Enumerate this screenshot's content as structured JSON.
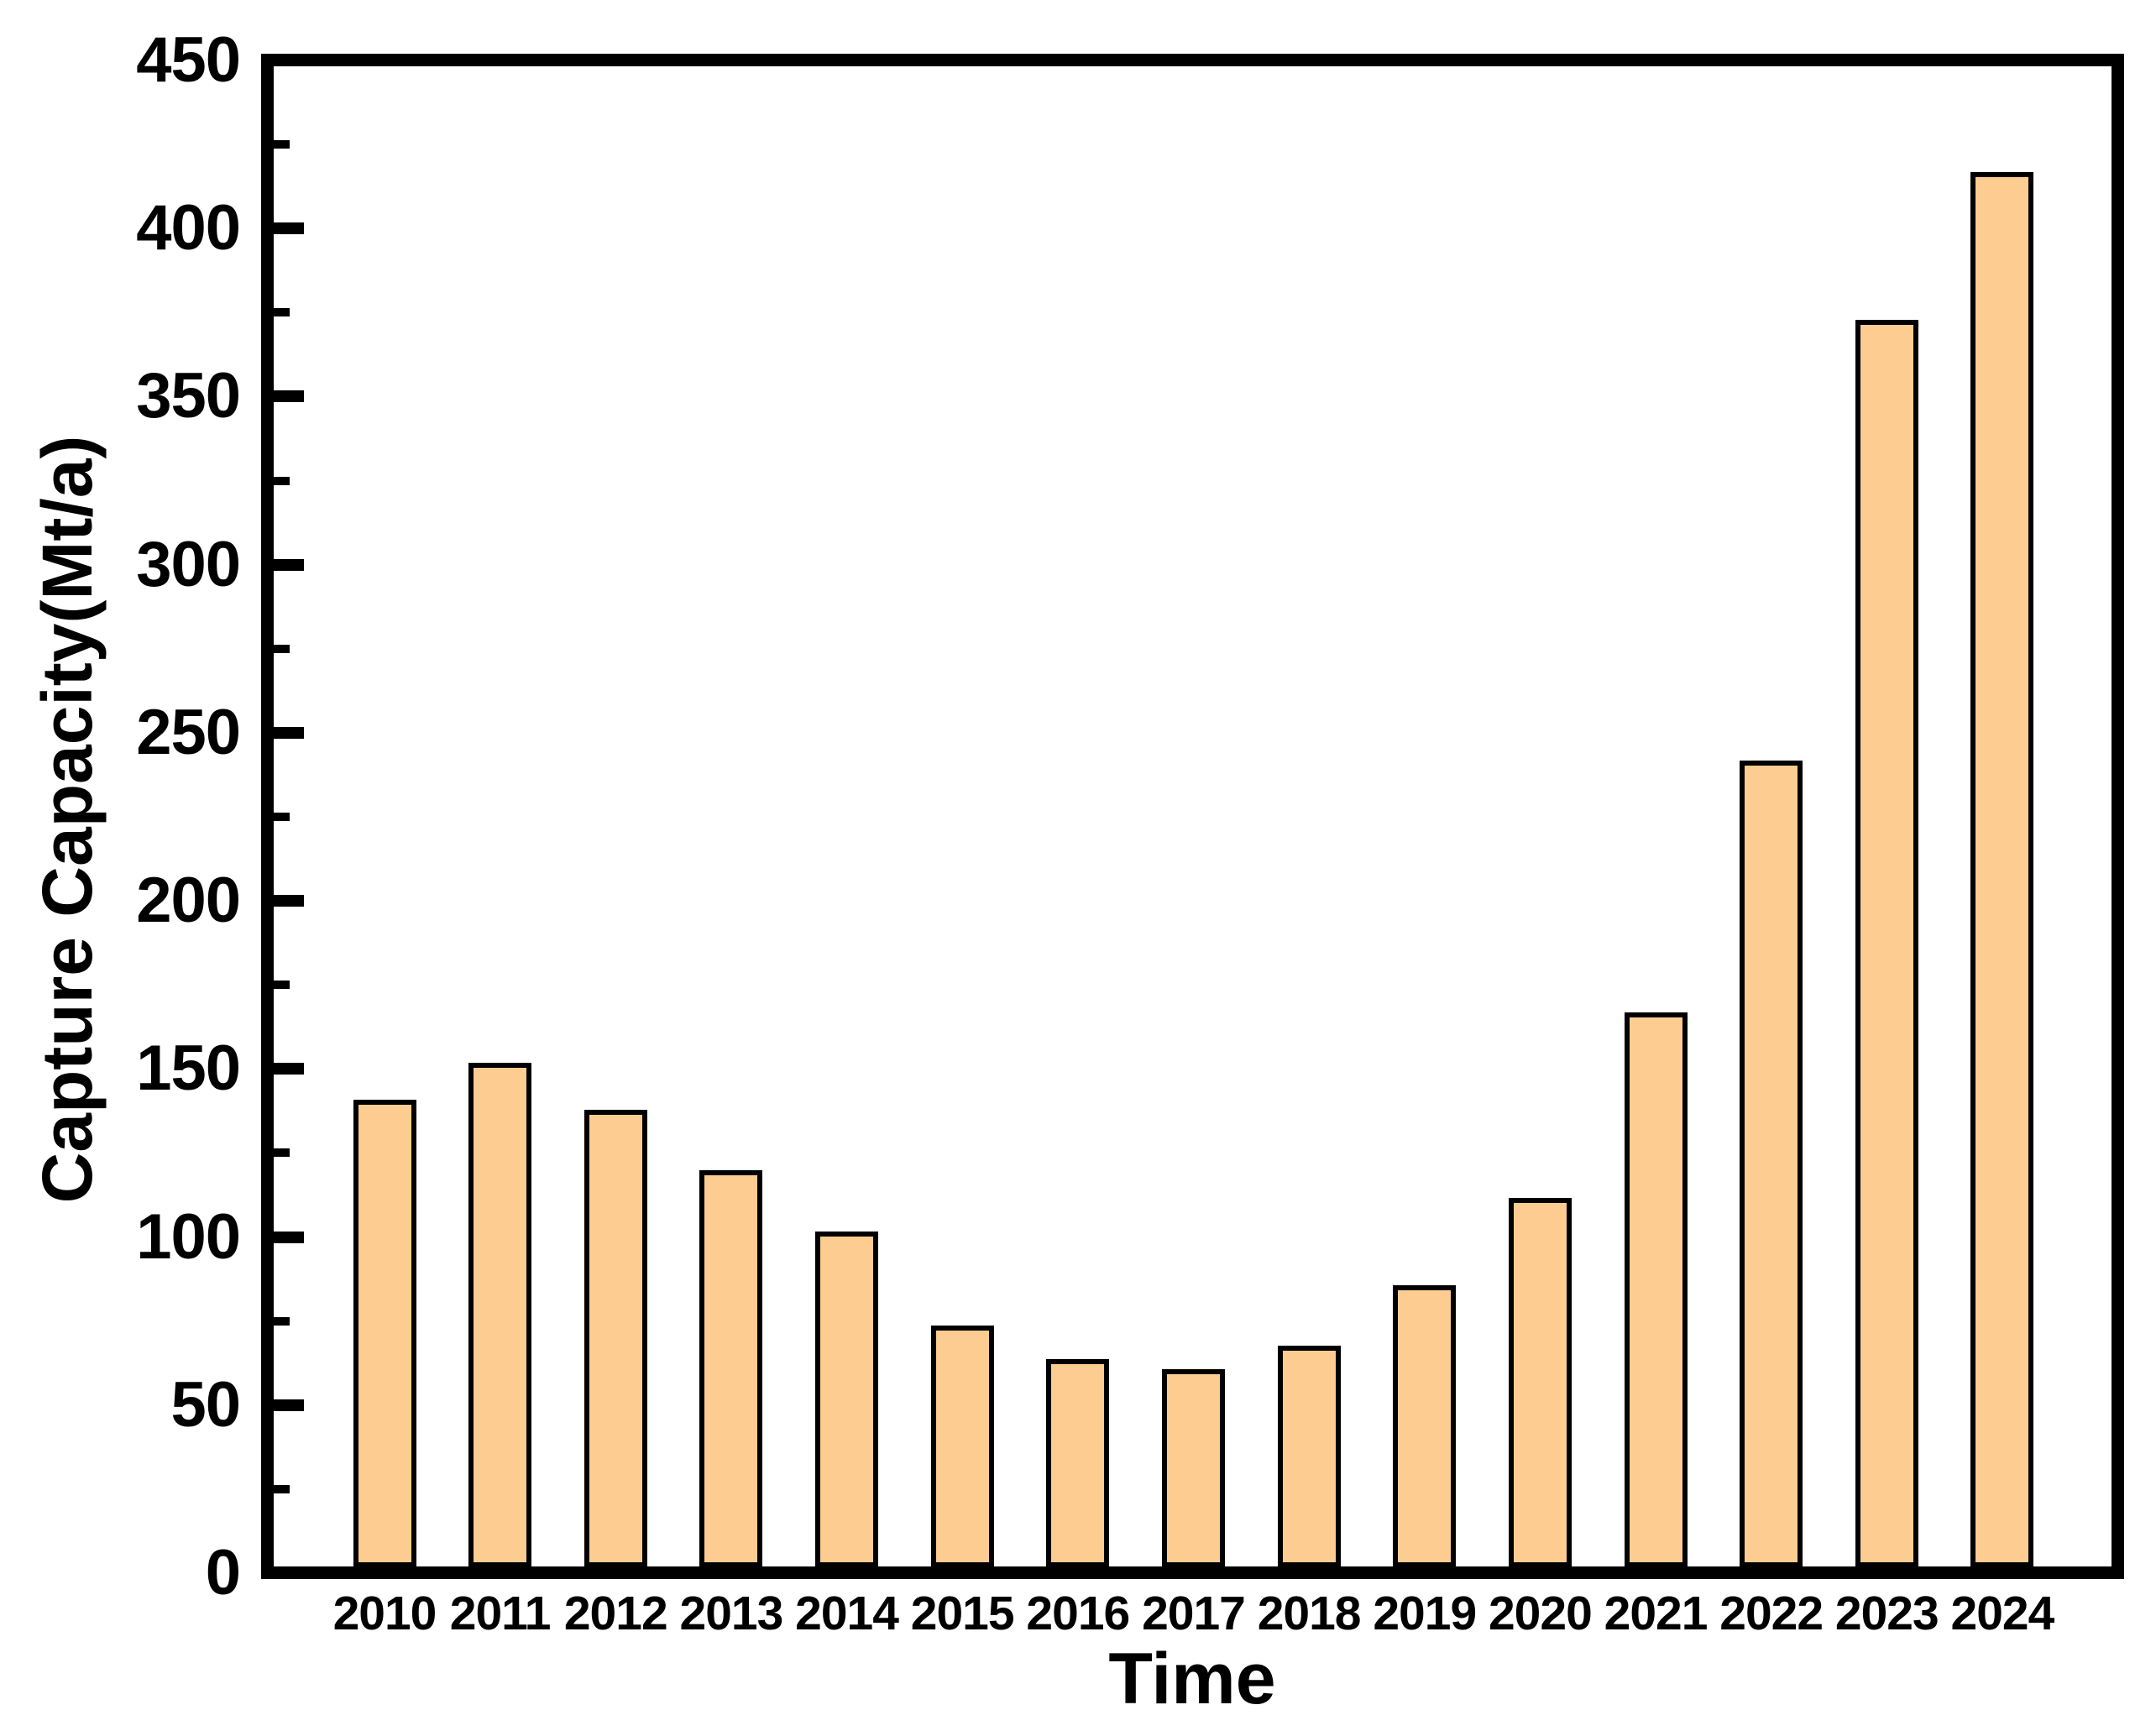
{
  "chart_data": {
    "type": "bar",
    "title": "",
    "xlabel": "Time",
    "ylabel": "Capture Capacity(Mt/a)",
    "categories": [
      "2010",
      "2011",
      "2012",
      "2013",
      "2014",
      "2015",
      "2016",
      "2017",
      "2018",
      "2019",
      "2020",
      "2021",
      "2022",
      "2023",
      "2024"
    ],
    "values": [
      140,
      151,
      137,
      119,
      101,
      73,
      63,
      60,
      67,
      85,
      111,
      166,
      241,
      372,
      416
    ],
    "ylim": [
      0,
      450
    ],
    "y_major_step": 50,
    "y_minor_step": 25,
    "y_tick_labels": [
      "0",
      "50",
      "100",
      "150",
      "200",
      "250",
      "300",
      "350",
      "400",
      "450"
    ],
    "grid": false,
    "legend": "none",
    "bar_fill_color": "#FCCC90",
    "bar_border_color": "#000000",
    "axis_color": "#000000",
    "text_color": "#000000",
    "background_color": "#FFFFFF"
  }
}
